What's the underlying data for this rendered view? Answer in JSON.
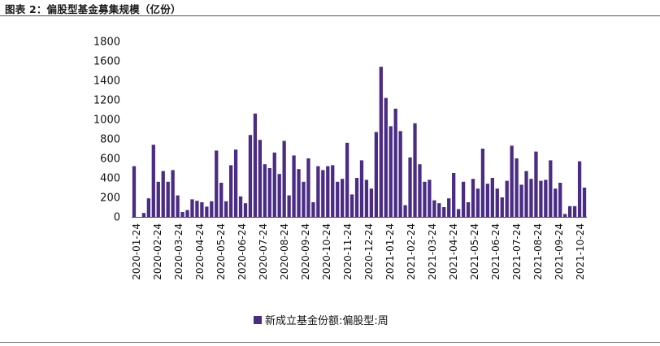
{
  "figure": {
    "title": "图表 2：偏股型基金募集规模（亿份）"
  },
  "colors": {
    "bar": "#4B2C84",
    "axis": "#444444"
  },
  "chart_data": {
    "type": "bar",
    "title": "图表 2：偏股型基金募集规模（亿份）",
    "ylabel": "",
    "xlabel": "",
    "ylim": [
      0,
      1800
    ],
    "yticks": [
      0,
      200,
      400,
      600,
      800,
      1000,
      1200,
      1400,
      1600,
      1800
    ],
    "x_tick_labels": [
      "2020-01-24",
      "2020-02-24",
      "2020-03-24",
      "2020-04-24",
      "2020-05-24",
      "2020-06-24",
      "2020-07-24",
      "2020-08-24",
      "2020-09-24",
      "2020-10-24",
      "2020-11-24",
      "2020-12-24",
      "2021-01-24",
      "2021-02-24",
      "2021-03-24",
      "2021-04-24",
      "2021-05-24",
      "2021-06-24",
      "2021-07-24",
      "2021-08-24",
      "2021-09-24",
      "2021-10-24"
    ],
    "legend_position": "bottom",
    "grid": false,
    "series": [
      {
        "name": "新成立基金份额:偏股型:周",
        "values": [
          520,
          0,
          40,
          190,
          740,
          360,
          470,
          360,
          480,
          220,
          50,
          70,
          180,
          165,
          150,
          105,
          160,
          680,
          350,
          160,
          530,
          690,
          210,
          140,
          840,
          1060,
          790,
          540,
          500,
          660,
          440,
          780,
          220,
          630,
          490,
          360,
          600,
          150,
          520,
          480,
          520,
          530,
          360,
          390,
          760,
          230,
          400,
          580,
          380,
          290,
          870,
          1540,
          1220,
          930,
          1110,
          880,
          120,
          610,
          960,
          540,
          360,
          380,
          170,
          140,
          100,
          190,
          450,
          80,
          360,
          150,
          390,
          290,
          700,
          340,
          400,
          290,
          200,
          370,
          730,
          600,
          330,
          470,
          390,
          670,
          370,
          380,
          580,
          290,
          350,
          30,
          110,
          110,
          570,
          300
        ]
      }
    ]
  }
}
